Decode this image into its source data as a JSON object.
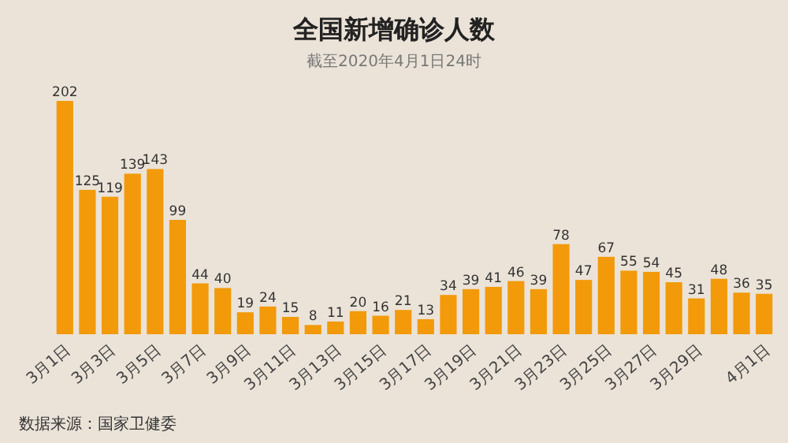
{
  "chart_data": {
    "type": "bar",
    "title": "全国新增确诊人数",
    "subtitle": "截至2020年4月1日24时",
    "categories": [
      "3月1日",
      null,
      "3月3日",
      null,
      "3月5日",
      null,
      "3月7日",
      null,
      "3月9日",
      null,
      "3月11日",
      null,
      "3月13日",
      null,
      "3月15日",
      null,
      "3月17日",
      null,
      "3月19日",
      null,
      "3月21日",
      null,
      "3月23日",
      null,
      "3月25日",
      null,
      "3月27日",
      null,
      "3月29日",
      null,
      null,
      "4月1日"
    ],
    "values": [
      202,
      125,
      119,
      139,
      143,
      99,
      44,
      40,
      19,
      24,
      15,
      8,
      11,
      20,
      16,
      21,
      13,
      34,
      39,
      41,
      46,
      39,
      78,
      47,
      67,
      55,
      54,
      45,
      31,
      48,
      36,
      35
    ],
    "color": "#f29a0a",
    "data_labels": true,
    "annotations": [
      "数据来源：国家卫健委"
    ]
  }
}
